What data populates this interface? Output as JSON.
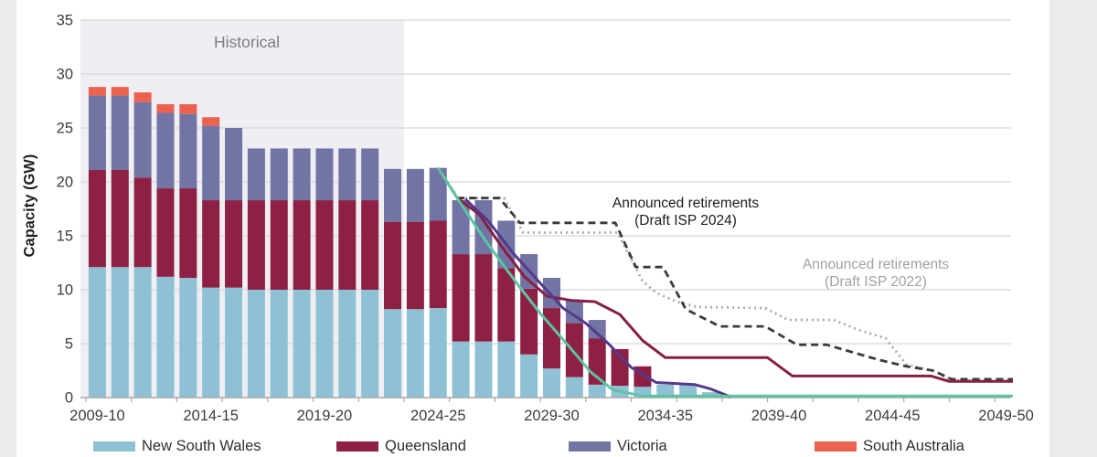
{
  "chart_data": {
    "type": "bar",
    "stacked": true,
    "title": "",
    "xlabel": "",
    "ylabel": "Capacity (GW)",
    "ylim": [
      0,
      35
    ],
    "yticks": [
      0,
      5,
      10,
      15,
      20,
      25,
      30,
      35
    ],
    "x_tick_labels": [
      "2009-10",
      "2014-15",
      "2019-20",
      "2024-25",
      "2029-30",
      "2034-35",
      "2039-40",
      "2044-45",
      "2049-50"
    ],
    "x_tick_label_every": 5,
    "categories": [
      "2009-10",
      "2010-11",
      "2011-12",
      "2012-13",
      "2013-14",
      "2014-15",
      "2015-16",
      "2016-17",
      "2017-18",
      "2018-19",
      "2019-20",
      "2020-21",
      "2021-22",
      "2022-23",
      "2023-24",
      "2024-25",
      "2025-26",
      "2026-27",
      "2027-28",
      "2028-29",
      "2029-30",
      "2030-31",
      "2031-32",
      "2032-33",
      "2033-34",
      "2034-35",
      "2035-36",
      "2036-37",
      "2037-38",
      "2038-39",
      "2039-40",
      "2040-41",
      "2041-42",
      "2042-43",
      "2043-44",
      "2044-45",
      "2045-46",
      "2046-47",
      "2047-48",
      "2048-49",
      "2049-50"
    ],
    "bar_series": [
      {
        "name": "New South Wales",
        "color": "#8FC1D4",
        "values": [
          12.1,
          12.1,
          12.1,
          11.2,
          11.1,
          10.2,
          10.2,
          10.0,
          10.0,
          10.0,
          10.0,
          10.0,
          10.0,
          8.2,
          8.2,
          8.3,
          5.2,
          5.2,
          5.2,
          4.0,
          2.7,
          1.9,
          1.2,
          1.1,
          1.0,
          1.2,
          1.2,
          0.5,
          0,
          0,
          0,
          0,
          0,
          0,
          0,
          0,
          0,
          0,
          0,
          0,
          0
        ]
      },
      {
        "name": "Queensland",
        "color": "#8E2143",
        "values": [
          9.0,
          9.0,
          8.3,
          8.2,
          8.3,
          8.1,
          8.1,
          8.3,
          8.3,
          8.3,
          8.3,
          8.3,
          8.3,
          8.1,
          8.1,
          8.1,
          8.1,
          8.1,
          6.8,
          6.1,
          5.6,
          5.0,
          4.3,
          3.4,
          1.9,
          0,
          0,
          0,
          0,
          0,
          0,
          0,
          0,
          0,
          0,
          0,
          0,
          0,
          0,
          0,
          0
        ]
      },
      {
        "name": "Victoria",
        "color": "#7274A4",
        "values": [
          6.9,
          6.9,
          7.0,
          7.0,
          6.9,
          6.9,
          6.7,
          4.8,
          4.8,
          4.8,
          4.8,
          4.8,
          4.8,
          4.9,
          4.9,
          4.9,
          5.0,
          5.0,
          4.4,
          3.2,
          2.8,
          2.1,
          1.7,
          0,
          0,
          0,
          0,
          0,
          0,
          0,
          0,
          0,
          0,
          0,
          0,
          0,
          0,
          0,
          0,
          0,
          0
        ]
      },
      {
        "name": "South Australia",
        "color": "#EC624E",
        "values": [
          0.8,
          0.8,
          0.9,
          0.8,
          0.9,
          0.8,
          0,
          0,
          0,
          0,
          0,
          0,
          0,
          0,
          0,
          0,
          0,
          0,
          0,
          0,
          0,
          0,
          0,
          0,
          0,
          0,
          0,
          0,
          0,
          0,
          0,
          0,
          0,
          0,
          0,
          0,
          0,
          0,
          0,
          0,
          0
        ]
      }
    ],
    "line_series": [
      {
        "id": "announced-retirements-draft-isp-2022",
        "style": "dotted",
        "color": "#ABABAB",
        "points": [
          [
            15,
            21.3
          ],
          [
            15.85,
            18.5
          ],
          [
            17.9,
            18.5
          ],
          [
            18.75,
            15.3
          ],
          [
            22.9,
            15.3
          ],
          [
            24.0,
            10.8
          ],
          [
            24.6,
            9.7
          ],
          [
            25.5,
            8.9
          ],
          [
            26.4,
            8.4
          ],
          [
            29.4,
            8.3
          ],
          [
            30.4,
            7.2
          ],
          [
            32.4,
            7.2
          ],
          [
            33.6,
            6.2
          ],
          [
            34.7,
            5.5
          ],
          [
            35.6,
            3.1
          ],
          [
            36.9,
            2.4
          ],
          [
            37.6,
            1.6
          ],
          [
            40.3,
            1.6
          ]
        ]
      },
      {
        "id": "announced-retirements-draft-isp-2024",
        "style": "dashed",
        "color": "#3B3B3B",
        "points": [
          [
            15,
            21.3
          ],
          [
            15.85,
            18.5
          ],
          [
            17.7,
            18.5
          ],
          [
            18.6,
            16.2
          ],
          [
            22.8,
            16.2
          ],
          [
            23.7,
            12.1
          ],
          [
            24.9,
            12.1
          ],
          [
            25.9,
            8.2
          ],
          [
            27.4,
            6.6
          ],
          [
            29.4,
            6.6
          ],
          [
            30.8,
            4.9
          ],
          [
            32.1,
            4.9
          ],
          [
            34.4,
            3.5
          ],
          [
            35.6,
            2.9
          ],
          [
            36.8,
            2.5
          ],
          [
            37.6,
            1.7
          ],
          [
            40.3,
            1.7
          ]
        ]
      },
      {
        "id": "maroon-trajectory",
        "style": "solid",
        "color": "#871F41",
        "points": [
          [
            15.85,
            18.5
          ],
          [
            16.8,
            17.0
          ],
          [
            17.8,
            14.0
          ],
          [
            18.8,
            11.2
          ],
          [
            19.8,
            9.4
          ],
          [
            20.9,
            9.0
          ],
          [
            21.9,
            8.9
          ],
          [
            23.0,
            7.7
          ],
          [
            24.0,
            5.3
          ],
          [
            25.0,
            3.7
          ],
          [
            29.5,
            3.7
          ],
          [
            30.6,
            2.0
          ],
          [
            36.7,
            2.0
          ],
          [
            37.5,
            1.5
          ],
          [
            40.3,
            1.5
          ]
        ]
      },
      {
        "id": "purple-trajectory",
        "style": "solid",
        "color": "#55398C",
        "points": [
          [
            16.2,
            18.4
          ],
          [
            17.2,
            16.4
          ],
          [
            18.3,
            13.4
          ],
          [
            19.5,
            10.6
          ],
          [
            20.5,
            8.3
          ],
          [
            21.5,
            6.9
          ],
          [
            22.5,
            5.0
          ],
          [
            23.5,
            2.8
          ],
          [
            24.6,
            1.4
          ],
          [
            26.3,
            1.2
          ],
          [
            27.0,
            0.8
          ],
          [
            27.9,
            0.05
          ]
        ]
      },
      {
        "id": "teal-trajectory",
        "style": "solid",
        "color": "#5CC3A3",
        "points": [
          [
            15,
            21.3
          ],
          [
            15.9,
            18.3
          ],
          [
            17.1,
            14.5
          ],
          [
            18.5,
            10.5
          ],
          [
            19.5,
            7.8
          ],
          [
            20.7,
            4.9
          ],
          [
            21.7,
            2.4
          ],
          [
            22.7,
            0.7
          ],
          [
            24,
            0.15
          ],
          [
            40.3,
            0.15
          ]
        ]
      }
    ],
    "historical_region": {
      "from": "2009-10",
      "to": "2022-23",
      "fill": "#EFEEF3"
    },
    "annotations": [
      {
        "id": "historical",
        "lines": [
          "Historical"
        ],
        "color": "#7D7D7D"
      },
      {
        "id": "isp2024",
        "lines": [
          "Announced retirements",
          "(Draft ISP 2024)"
        ],
        "color": "#1C1C1C"
      },
      {
        "id": "isp2022",
        "lines": [
          "Announced retirements",
          "(Draft ISP 2022)"
        ],
        "color": "#A1A1A1"
      }
    ],
    "colors": {
      "background": "#FFFFFF",
      "side_band": "#EBEBEB",
      "gridline": "#D7D7DA",
      "axis": "#A9A9A9",
      "tick_text": "#3C3C3C"
    },
    "legend_position": "bottom"
  }
}
